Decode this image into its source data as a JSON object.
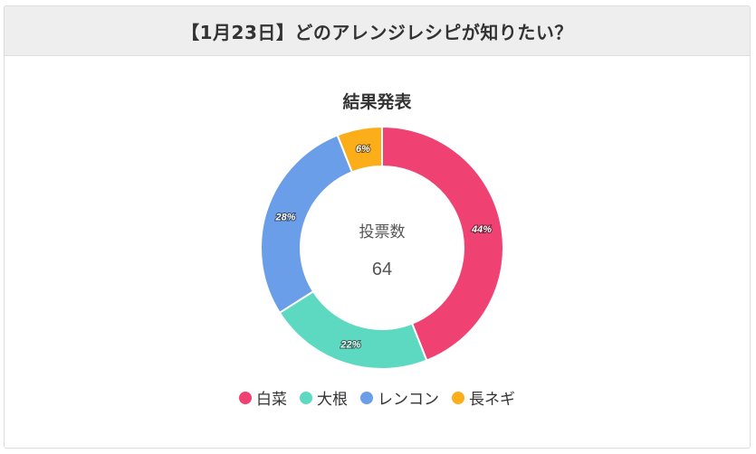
{
  "header": {
    "title": "【1月23日】どのアレンジレシピが知りたい？"
  },
  "chart_data": {
    "type": "pie",
    "style": "doughnut",
    "title": "結果発表",
    "center_label": "投票数",
    "center_value": "64",
    "categories": [
      "白菜",
      "大根",
      "レンコン",
      "長ネギ"
    ],
    "values": [
      44,
      22,
      28,
      6
    ],
    "value_labels": [
      "44%",
      "22%",
      "28%",
      "6%"
    ],
    "colors": [
      "#ef4273",
      "#5cd9c0",
      "#6b9ee8",
      "#fbae19"
    ],
    "legend_position": "bottom"
  }
}
